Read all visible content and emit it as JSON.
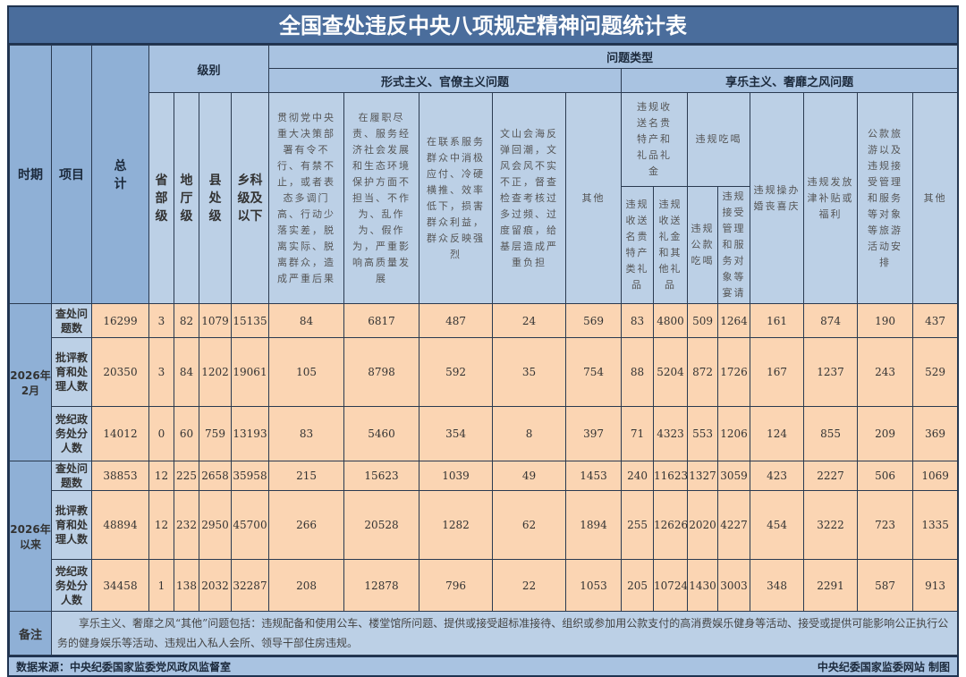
{
  "title": "全国查处违反中央八项规定精神问题统计表",
  "headers": {
    "period": "时期",
    "item": "项目",
    "total": "总计",
    "level": "级别",
    "problem_type": "问题类型",
    "levels": [
      "省部级",
      "地厅级",
      "县处级",
      "乡科级及以下"
    ],
    "formalism": "形式主义、官僚主义问题",
    "formalism_cols": [
      "贯彻党中央重大决策部署有令不行、有禁不止，或者表态多调门高、行动少落实差，脱离实际、脱离群众，造成严重后果",
      "在履职尽责、服务经济社会发展和生态环境保护方面不担当、不作为、乱作为、假作为，严重影响高质量发展",
      "在联系服务群众中消极应付、冷硬横推、效率低下，损害群众利益，群众反映强烈",
      "文山会海反弹回潮，文风会风不实不正，督查检查考核过多过频、过度留痕，给基层造成严重负担",
      "其他"
    ],
    "hedonism": "享乐主义、奢靡之风问题",
    "gift": "违规收送名贵特产和礼品礼金",
    "gift_sub": [
      "违规收送名贵特产类礼品",
      "违规收送礼金和其他礼品"
    ],
    "dining": "违规吃喝",
    "dining_sub": [
      "违规公款吃喝",
      "违规接受管理和服务对象等宴请"
    ],
    "hedonism_cols": [
      "违规操办婚丧喜庆",
      "违规发放津补贴或福利",
      "公款旅游以及违规接受管理和服务等对象等旅游活动安排",
      "其他"
    ]
  },
  "groups": [
    {
      "period": "2026年2月",
      "rows": [
        {
          "item": "查处问题数",
          "values": [
            16299,
            3,
            82,
            1079,
            15135,
            84,
            6817,
            487,
            24,
            569,
            83,
            4800,
            509,
            1264,
            161,
            874,
            190,
            437
          ]
        },
        {
          "item": "批评教育和处理人数",
          "values": [
            20350,
            3,
            84,
            1202,
            19061,
            105,
            8798,
            592,
            35,
            754,
            88,
            5204,
            872,
            1726,
            167,
            1237,
            243,
            529
          ]
        },
        {
          "item": "党纪政务处分人数",
          "values": [
            14012,
            0,
            60,
            759,
            13193,
            83,
            5460,
            354,
            8,
            397,
            71,
            4323,
            553,
            1206,
            124,
            855,
            209,
            369
          ]
        }
      ]
    },
    {
      "period": "2026年以来",
      "rows": [
        {
          "item": "查处问题数",
          "values": [
            38853,
            12,
            225,
            2658,
            35958,
            215,
            15623,
            1039,
            49,
            1453,
            240,
            11623,
            1327,
            3059,
            423,
            2227,
            506,
            1069
          ]
        },
        {
          "item": "批评教育和处理人数",
          "values": [
            48894,
            12,
            232,
            2950,
            45700,
            266,
            20528,
            1282,
            62,
            1894,
            255,
            12626,
            2020,
            4227,
            454,
            3222,
            723,
            1335
          ]
        },
        {
          "item": "党纪政务处分人数",
          "values": [
            34458,
            1,
            138,
            2032,
            32287,
            208,
            12878,
            796,
            22,
            1053,
            205,
            10724,
            1430,
            3003,
            348,
            2291,
            587,
            913
          ]
        }
      ]
    }
  ],
  "note_label": "备注",
  "note": "享乐主义、奢靡之风“其他”问题包括：违规配备和使用公车、楼堂馆所问题、提供或接受超标准接待、组织或参加用公款支付的高消费娱乐健身等活动、接受或提供可能影响公正执行公务的健身娱乐等活动、违规出入私人会所、领导干部住房违规。",
  "source": "数据来源：中央纪委国家监委党风政风监督室",
  "credit": "中央纪委国家监委网站 制图",
  "colors": {
    "header_dark": "#4a6d9c",
    "header_light": "#bcd0e6",
    "cell": "#fbd5b3"
  }
}
